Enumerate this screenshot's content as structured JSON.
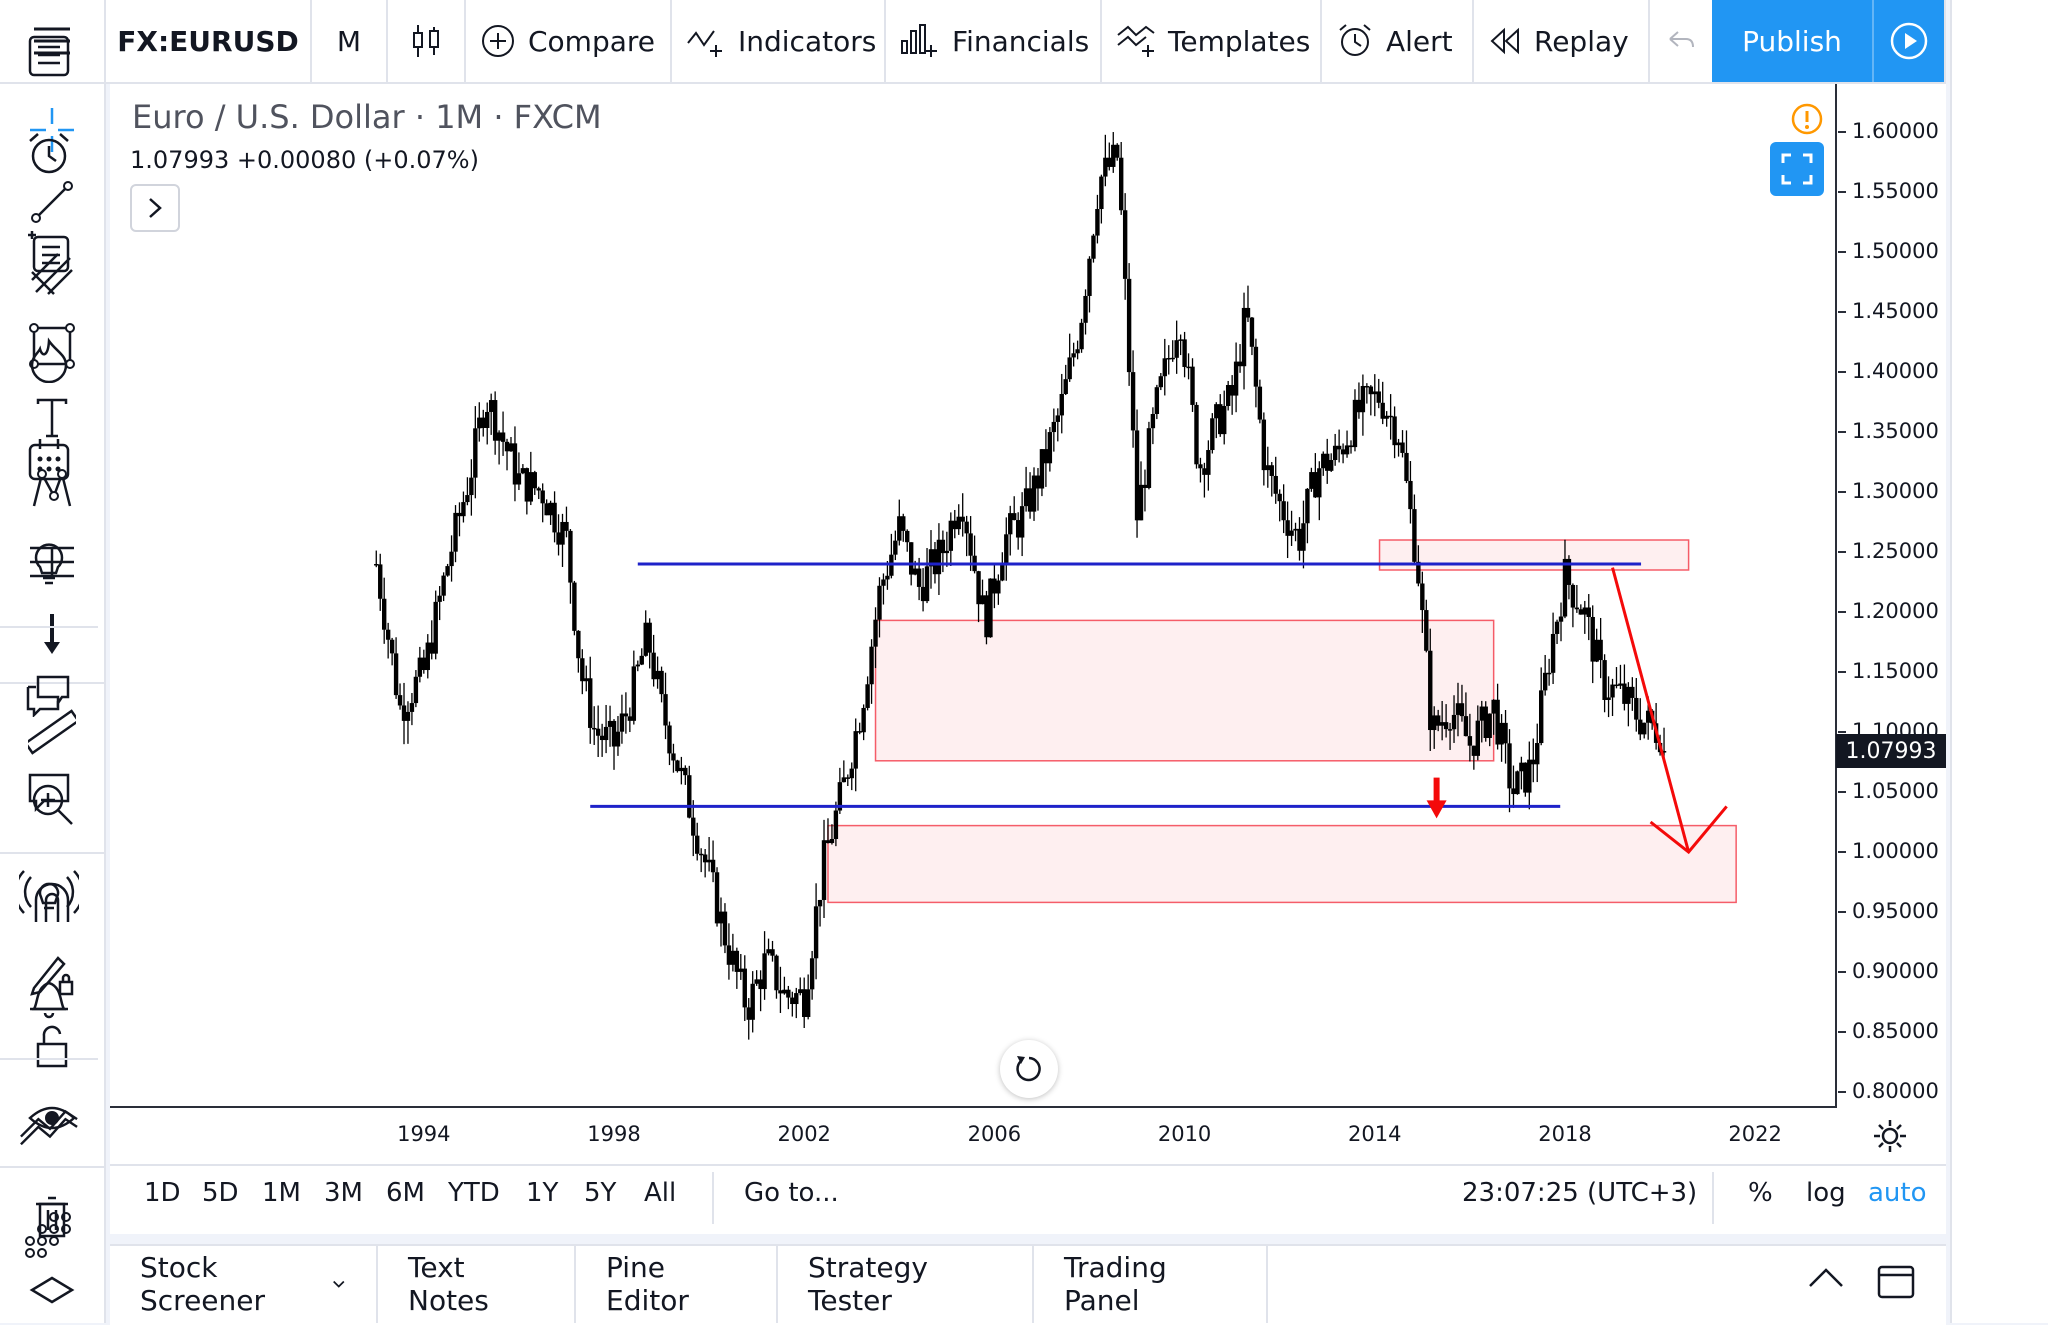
{
  "toolbar": {
    "symbol": "FX:EURUSD",
    "interval": "M",
    "compare": "Compare",
    "indicators": "Indicators",
    "financials": "Financials",
    "templates": "Templates",
    "alert": "Alert",
    "replay": "Replay",
    "publish": "Publish"
  },
  "chart": {
    "title": "Euro / U.S. Dollar · 1M · FXCM",
    "price_line": "1.07993  +0.00080 (+0.07%)",
    "current_price_label": "1.07993"
  },
  "chart_data": {
    "type": "candlestick",
    "y_tick_labels": [
      "1.60000",
      "1.55000",
      "1.50000",
      "1.45000",
      "1.40000",
      "1.35000",
      "1.30000",
      "1.25000",
      "1.20000",
      "1.15000",
      "1.10000",
      "1.05000",
      "1.00000",
      "0.95000",
      "0.90000",
      "0.85000",
      "0.80000"
    ],
    "x_tick_labels": [
      "1994",
      "1998",
      "2002",
      "2006",
      "2010",
      "2014",
      "2018",
      "2022"
    ],
    "ylim": [
      0.79,
      1.64
    ],
    "xlim": [
      1987.4,
      2023.7
    ],
    "series": [
      {
        "x": [
          1993.0,
          1993.5,
          1994.0,
          1994.5,
          1995.0,
          1995.3,
          1995.6,
          1996.0,
          1996.5,
          1997.0,
          1997.3,
          1997.6,
          1998.0,
          1998.3,
          1998.7,
          1999.0,
          1999.5,
          2000.0,
          2000.4,
          2000.8,
          2001.2,
          2001.6,
          2002.0,
          2002.4,
          2002.8,
          2003.2,
          2003.6,
          2004.0,
          2004.4,
          2004.9,
          2005.3,
          2005.8,
          2006.2,
          2006.6,
          2007.0,
          2007.4,
          2007.8,
          2008.2,
          2008.6,
          2009.0,
          2009.4,
          2009.9,
          2010.3,
          2010.7,
          2011.0,
          2011.3,
          2011.7,
          2012.0,
          2012.4,
          2012.8,
          2013.2,
          2013.7,
          2014.1,
          2014.5,
          2014.9,
          2015.2,
          2015.6,
          2016.0,
          2016.5,
          2016.9,
          2017.3,
          2017.7,
          2018.0,
          2018.4,
          2018.8,
          2019.2,
          2019.6,
          2020.0,
          2020.1
        ],
        "y": [
          1.24,
          1.12,
          1.15,
          1.24,
          1.32,
          1.38,
          1.35,
          1.31,
          1.3,
          1.26,
          1.15,
          1.1,
          1.09,
          1.12,
          1.18,
          1.12,
          1.05,
          0.98,
          0.92,
          0.87,
          0.91,
          0.88,
          0.88,
          0.99,
          1.05,
          1.12,
          1.22,
          1.27,
          1.22,
          1.25,
          1.3,
          1.19,
          1.26,
          1.28,
          1.32,
          1.37,
          1.44,
          1.56,
          1.58,
          1.28,
          1.37,
          1.45,
          1.32,
          1.36,
          1.38,
          1.45,
          1.32,
          1.29,
          1.26,
          1.32,
          1.33,
          1.37,
          1.38,
          1.35,
          1.24,
          1.1,
          1.12,
          1.09,
          1.12,
          1.05,
          1.07,
          1.17,
          1.23,
          1.2,
          1.14,
          1.13,
          1.11,
          1.1,
          1.08
        ]
      }
    ],
    "annotations": [
      {
        "type": "horizontal_line",
        "y": 1.24,
        "x_start": 1998.5,
        "x_end": 2019.6,
        "color": "#1e22c9"
      },
      {
        "type": "horizontal_line",
        "y": 1.038,
        "x_start": 1997.5,
        "x_end": 2017.9,
        "color": "#1e22c9"
      },
      {
        "type": "zone",
        "x_start": 2003.5,
        "x_end": 2016.5,
        "y_top": 1.193,
        "y_bottom": 1.076,
        "color": "#f23645"
      },
      {
        "type": "zone",
        "x_start": 2014.1,
        "x_end": 2020.6,
        "y_top": 1.26,
        "y_bottom": 1.235,
        "color": "#f23645"
      },
      {
        "type": "zone",
        "x_start": 2002.5,
        "x_end": 2021.6,
        "y_top": 1.022,
        "y_bottom": 0.958,
        "color": "#f23645"
      }
    ]
  },
  "range_bar": {
    "ranges": [
      "1D",
      "5D",
      "1M",
      "3M",
      "6M",
      "YTD",
      "1Y",
      "5Y",
      "All"
    ],
    "goto": "Go to...",
    "clock": "23:07:25 (UTC+3)",
    "percent": "%",
    "log": "log",
    "auto": "auto"
  },
  "bottom_tabs": [
    "Stock Screener",
    "Text Notes",
    "Pine Editor",
    "Strategy Tester",
    "Trading Panel"
  ],
  "colors": {
    "accent": "#2196f3",
    "level_line": "#1e22c9",
    "zone": "#f23645",
    "arrow": "#f40a0a"
  }
}
